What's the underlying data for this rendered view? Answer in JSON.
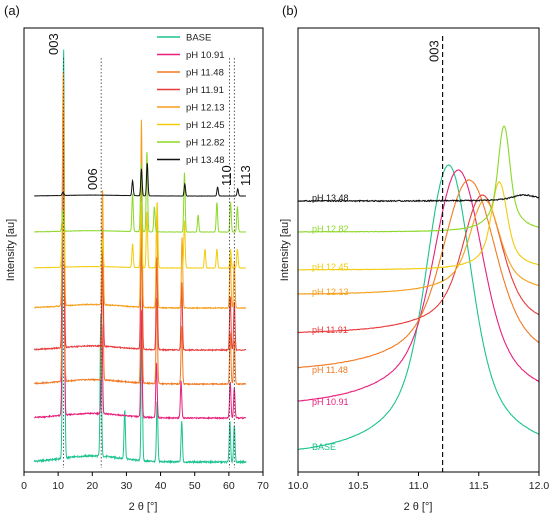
{
  "chart_data": [
    {
      "panel": "(a)",
      "type": "line",
      "xlabel": "2 θ [°]",
      "ylabel": "Intensity [au]",
      "xlim": [
        0,
        70
      ],
      "xticks": [
        0,
        10,
        20,
        30,
        40,
        50,
        60,
        70
      ],
      "yticks": false,
      "legend_position": "top-right",
      "peak_labels": [
        {
          "text": "003",
          "x": 11.6
        },
        {
          "text": "006",
          "x": 22.6
        },
        {
          "text": "110",
          "x": 60.2
        },
        {
          "text": "113",
          "x": 61.6
        }
      ],
      "series": [
        {
          "name": "BASE",
          "color": "#1cc38f",
          "peaks": [
            [
              11.6,
              1.0
            ],
            [
              22.5,
              0.35
            ],
            [
              29.5,
              0.12
            ],
            [
              34.5,
              0.3
            ],
            [
              39.0,
              0.15
            ],
            [
              46.2,
              0.1
            ],
            [
              60.3,
              0.1
            ],
            [
              61.6,
              0.09
            ]
          ]
        },
        {
          "name": "pH 10.91",
          "color": "#e8207c",
          "peaks": [
            [
              11.5,
              1.0
            ],
            [
              22.8,
              0.3
            ],
            [
              34.4,
              0.35
            ],
            [
              38.8,
              0.18
            ],
            [
              46.0,
              0.12
            ],
            [
              60.4,
              0.12
            ],
            [
              61.6,
              0.1
            ]
          ]
        },
        {
          "name": "pH 11.48",
          "color": "#f07a24",
          "peaks": [
            [
              11.5,
              1.0
            ],
            [
              23.0,
              0.4
            ],
            [
              34.4,
              0.55
            ],
            [
              38.9,
              0.3
            ],
            [
              46.2,
              0.2
            ],
            [
              60.4,
              0.18
            ],
            [
              61.6,
              0.15
            ]
          ]
        },
        {
          "name": "pH 11.91",
          "color": "#e83c3c",
          "peaks": [
            [
              11.5,
              1.0
            ],
            [
              23.0,
              0.45
            ],
            [
              34.4,
              0.75
            ],
            [
              38.9,
              0.35
            ],
            [
              46.2,
              0.25
            ],
            [
              60.4,
              0.2
            ],
            [
              61.6,
              0.18
            ]
          ]
        },
        {
          "name": "pH 12.13",
          "color": "#f59f1b",
          "peaks": [
            [
              11.5,
              1.0
            ],
            [
              23.0,
              0.5
            ],
            [
              34.4,
              0.8
            ],
            [
              38.9,
              0.4
            ],
            [
              46.3,
              0.3
            ],
            [
              60.4,
              0.22
            ],
            [
              61.6,
              0.2
            ]
          ]
        },
        {
          "name": "pH 12.45",
          "color": "#f2cc0c",
          "peaks": [
            [
              11.4,
              0.6
            ],
            [
              23.0,
              0.3
            ],
            [
              31.8,
              0.25
            ],
            [
              34.3,
              0.7
            ],
            [
              36.0,
              0.6
            ],
            [
              39.0,
              0.7
            ],
            [
              47.0,
              0.5
            ],
            [
              53.0,
              0.2
            ],
            [
              56.5,
              0.2
            ],
            [
              60.5,
              0.2
            ],
            [
              62.5,
              0.2
            ]
          ]
        },
        {
          "name": "pH 12.82",
          "color": "#8cd82a",
          "peaks": [
            [
              11.4,
              0.25
            ],
            [
              31.8,
              0.45
            ],
            [
              34.3,
              0.8
            ],
            [
              36.0,
              0.95
            ],
            [
              38.2,
              0.3
            ],
            [
              47.0,
              0.7
            ],
            [
              51.0,
              0.2
            ],
            [
              56.5,
              0.35
            ],
            [
              60.5,
              0.35
            ],
            [
              62.5,
              0.3
            ]
          ]
        },
        {
          "name": "pH 13.48",
          "color": "#111111",
          "peaks": [
            [
              11.4,
              0.05
            ],
            [
              31.8,
              0.25
            ],
            [
              34.4,
              0.45
            ],
            [
              36.1,
              0.55
            ],
            [
              47.1,
              0.2
            ],
            [
              56.7,
              0.15
            ],
            [
              62.6,
              0.12
            ]
          ]
        }
      ]
    },
    {
      "panel": "(b)",
      "type": "line",
      "xlabel": "2 θ [°]",
      "ylabel": "Intensity [au]",
      "xlim": [
        10.0,
        12.0
      ],
      "xticks": [
        "10.0",
        "10.5",
        "11.0",
        "11.5",
        "12.0"
      ],
      "yticks": false,
      "reference_line": {
        "text": "003",
        "x": 11.2
      },
      "series": [
        {
          "name": "BASE",
          "color": "#1cc38f",
          "peak_x": 11.25
        },
        {
          "name": "pH 10.91",
          "color": "#e8207c",
          "peak_x": 11.33
        },
        {
          "name": "pH 11.48",
          "color": "#f07a24",
          "peak_x": 11.42
        },
        {
          "name": "pH 11.91",
          "color": "#e83c3c",
          "peak_x": 11.53
        },
        {
          "name": "pH 12.13",
          "color": "#f59f1b",
          "peak_x": 11.55
        },
        {
          "name": "pH 12.45",
          "color": "#f2cc0c",
          "peak_x": 11.67
        },
        {
          "name": "pH 12.82",
          "color": "#8cd82a",
          "peak_x": 11.71
        },
        {
          "name": "pH 13.48",
          "color": "#111111",
          "peak_x": 11.88
        }
      ]
    }
  ]
}
